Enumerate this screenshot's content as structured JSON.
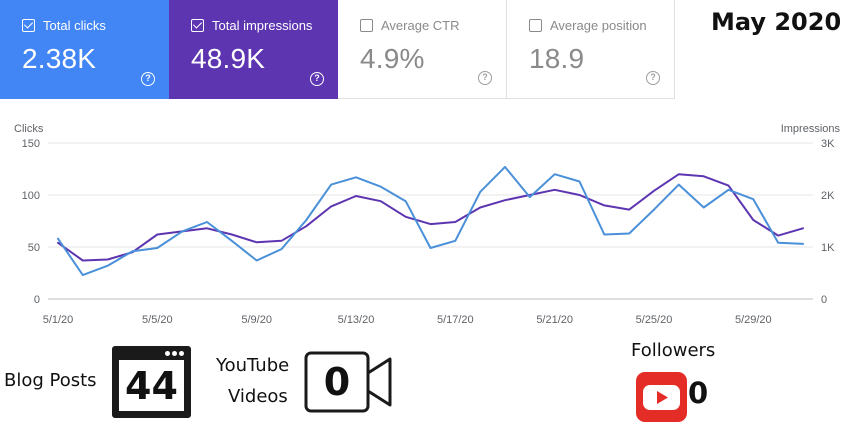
{
  "metrics": {
    "clicks": {
      "label": "Total clicks",
      "value": "2.38K",
      "checked": true
    },
    "impressions": {
      "label": "Total impressions",
      "value": "48.9K",
      "checked": true
    },
    "ctr": {
      "label": "Average CTR",
      "value": "4.9%",
      "checked": false
    },
    "position": {
      "label": "Average position",
      "value": "18.9",
      "checked": false
    },
    "help_glyph": "?"
  },
  "month_label": "May 2020",
  "chart_data": {
    "type": "line",
    "left_axis": {
      "label": "Clicks",
      "ticks": [
        "150",
        "100",
        "50",
        "0"
      ],
      "range": [
        0,
        150
      ]
    },
    "right_axis": {
      "label": "Impressions",
      "ticks": [
        "3K",
        "2K",
        "1K",
        "0"
      ],
      "range": [
        0,
        3000
      ]
    },
    "x_ticks": [
      "5/1/20",
      "5/5/20",
      "5/9/20",
      "5/13/20",
      "5/17/20",
      "5/21/20",
      "5/25/20",
      "5/29/20"
    ],
    "x": [
      "5/1/20",
      "5/2/20",
      "5/3/20",
      "5/4/20",
      "5/5/20",
      "5/6/20",
      "5/7/20",
      "5/8/20",
      "5/9/20",
      "5/10/20",
      "5/11/20",
      "5/12/20",
      "5/13/20",
      "5/14/20",
      "5/15/20",
      "5/16/20",
      "5/17/20",
      "5/18/20",
      "5/19/20",
      "5/20/20",
      "5/21/20",
      "5/22/20",
      "5/23/20",
      "5/24/20",
      "5/25/20",
      "5/26/20",
      "5/27/20",
      "5/28/20",
      "5/29/20",
      "5/30/20",
      "5/31/20"
    ],
    "series": [
      {
        "name": "Clicks",
        "axis": "left",
        "color": "#4a90d9",
        "values": [
          58,
          23,
          32,
          46,
          49,
          65,
          74,
          56,
          37,
          48,
          76,
          110,
          117,
          108,
          94,
          49,
          56,
          103,
          127,
          98,
          120,
          113,
          62,
          63,
          86,
          110,
          88,
          105,
          96,
          54,
          53
        ]
      },
      {
        "name": "Impressions",
        "axis": "right",
        "color": "#5e35b1",
        "values": [
          1080,
          740,
          760,
          900,
          1240,
          1300,
          1360,
          1240,
          1090,
          1120,
          1400,
          1780,
          1980,
          1880,
          1580,
          1440,
          1480,
          1760,
          1900,
          2000,
          2100,
          2000,
          1800,
          1720,
          2080,
          2400,
          2360,
          2180,
          1520,
          1220,
          1360
        ]
      }
    ]
  },
  "footer": {
    "blog_posts_label": "Blog Posts",
    "blog_posts_count": "44",
    "youtube_label_line1": "YouTube",
    "youtube_label_line2": "Videos",
    "youtube_videos_count": "0",
    "followers_label": "Followers",
    "followers_count": "0",
    "youtube_brand_color": "#e52d27"
  }
}
